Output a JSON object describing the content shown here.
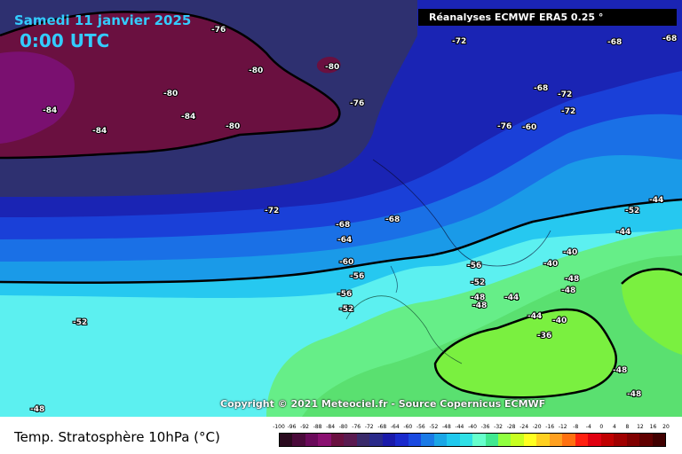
{
  "header": {
    "date": "Samedi 11 janvier 2025",
    "time": "0:00 UTC",
    "source": "Réanalyses ECMWF ERA5 0.25 °"
  },
  "copyright": "Copyright © 2021 Meteociel.fr - Source Copernicus ECMWF",
  "footer": {
    "title": "Temp. Stratosphère 10hPa (°C)"
  },
  "contour_labels": [
    "-76",
    "-80",
    "-80",
    "-84",
    "-80",
    "-84",
    "-84",
    "-80",
    "-76",
    "-72",
    "-68",
    "-68",
    "-68",
    "-72",
    "-76",
    "-60",
    "-72",
    "-72",
    "-68",
    "-64",
    "-68",
    "-60",
    "-56",
    "-56",
    "-52",
    "-52",
    "-56",
    "-52",
    "-48",
    "-48",
    "-44",
    "-40",
    "-40",
    "-48",
    "-48",
    "-44",
    "-40",
    "-36",
    "-52",
    "-44",
    "-44",
    "-48",
    "-48",
    "-48"
  ],
  "legend": {
    "ticks": [
      "-100",
      "-96",
      "-92",
      "-88",
      "-84",
      "-80",
      "-76",
      "-72",
      "-68",
      "-64",
      "-60",
      "-56",
      "-52",
      "-48",
      "-44",
      "-40",
      "-36",
      "-32",
      "-28",
      "-24",
      "-20",
      "-16",
      "-12",
      "-8",
      "-4",
      "0",
      "4",
      "8",
      "12",
      "16",
      "20"
    ],
    "colors": [
      "#2a0a1e",
      "#4a0a3a",
      "#6a0a5a",
      "#8a1070",
      "#6a1040",
      "#5a1a50",
      "#3a2a6a",
      "#2a2a8a",
      "#1a1aaa",
      "#1a2acc",
      "#1a4ae0",
      "#1a7ae6",
      "#1aa6e6",
      "#20c8ee",
      "#30e0e6",
      "#66ffcc",
      "#40e890",
      "#90ff40",
      "#c8ff20",
      "#ffff20",
      "#ffd020",
      "#ffa020",
      "#ff7010",
      "#ff2010",
      "#e00010",
      "#c00000",
      "#a00000",
      "#800000",
      "#600000",
      "#400000"
    ]
  }
}
